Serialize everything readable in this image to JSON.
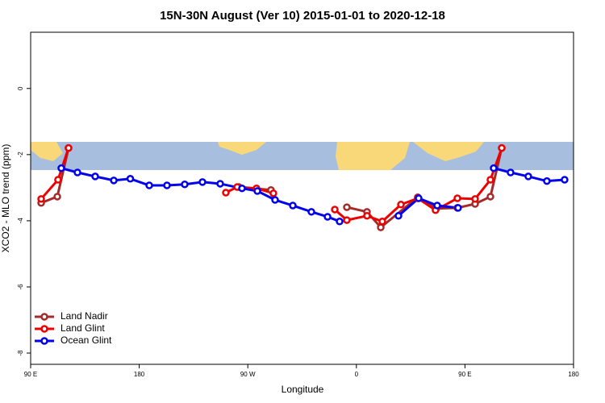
{
  "chart_data": {
    "type": "line",
    "title": "15N-30N August (Ver 10)   2015-01-01 to 2020-12-18",
    "x_label": "Longitude",
    "y_label": "XCO2 - MLO trend (ppm)",
    "xlim": [
      90,
      540
    ],
    "ylim": [
      -8.34,
      1.7
    ],
    "xticks": [
      {
        "value": 90,
        "label": "90 E"
      },
      180,
      {
        "value": 270,
        "label": "90 W"
      },
      {
        "value": 360,
        "label": "0"
      },
      {
        "value": 450,
        "label": "90 E"
      },
      {
        "value": 540,
        "label": "180"
      }
    ],
    "yticks": [
      0,
      -2,
      -4,
      -6,
      -8
    ],
    "legend": "bottom-left",
    "series": [
      {
        "name": "Land Nadir",
        "color": "#a52a2a",
        "x": [
          98.7,
          112.1,
          121.4,
          null,
          262.5,
          289.2,
          null,
          352.1,
          368.8,
          380.2,
          410.9,
          426.3,
          443.7,
          458.4,
          471.1,
          480.5
        ],
        "values": [
          -3.46,
          -3.27,
          -1.8,
          null,
          -2.98,
          -3.07,
          null,
          -3.59,
          -3.73,
          -4.2,
          -3.29,
          -3.63,
          -3.61,
          -3.49,
          -3.27,
          -1.8
        ]
      },
      {
        "name": "Land Glint",
        "color": "#ee0000",
        "x": [
          98.7,
          112.7,
          121.4,
          null,
          251.8,
          261.2,
          277.2,
          291.2,
          null,
          342.1,
          352.1,
          368.8,
          381.5,
          396.9,
          410.9,
          425.6,
          443.7,
          458.4,
          471.1,
          480.5
        ],
        "values": [
          -3.34,
          -2.76,
          -1.8,
          null,
          -3.15,
          -2.98,
          -3.02,
          -3.17,
          null,
          -3.66,
          -3.98,
          -3.85,
          -4.02,
          -3.51,
          -3.32,
          -3.68,
          -3.32,
          -3.34,
          -2.76,
          -1.8
        ]
      },
      {
        "name": "Ocean Glint",
        "color": "#0000ee",
        "x": [
          115.4,
          128.8,
          143.5,
          158.9,
          172.6,
          188.3,
          203.0,
          217.7,
          232.4,
          247.1,
          265.2,
          277.9,
          292.6,
          307.3,
          322.7,
          336.1,
          346.1,
          null,
          394.9,
          411.6,
          427.0,
          444.3,
          null,
          473.8,
          487.8,
          502.5,
          517.9,
          532.6
        ],
        "values": [
          -2.41,
          -2.54,
          -2.66,
          -2.78,
          -2.73,
          -2.93,
          -2.93,
          -2.9,
          -2.83,
          -2.88,
          -3.02,
          -3.1,
          -3.37,
          -3.54,
          -3.73,
          -3.88,
          -4.02,
          null,
          -3.85,
          -3.32,
          -3.54,
          -3.61,
          null,
          -2.41,
          -2.54,
          -2.66,
          -2.8,
          -2.76
        ]
      }
    ]
  }
}
